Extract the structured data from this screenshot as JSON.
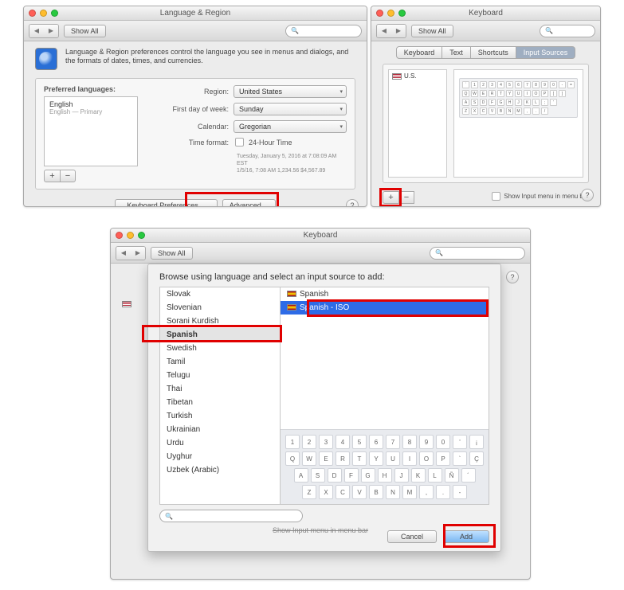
{
  "nav": {
    "show_all": "Show All"
  },
  "lang_region": {
    "title": "Language & Region",
    "desc": "Language & Region preferences control the language you see in menus and dialogs, and the formats of dates, times, and currencies.",
    "preferred_label": "Preferred languages:",
    "primary_lang": "English",
    "primary_sub": "English — Primary",
    "rows": {
      "region_label": "Region:",
      "region_val": "United States",
      "firstday_label": "First day of week:",
      "firstday_val": "Sunday",
      "calendar_label": "Calendar:",
      "calendar_val": "Gregorian",
      "timefmt_label": "Time format:",
      "timefmt_val": "24-Hour Time"
    },
    "sub_line1": "Tuesday, January 5, 2016 at 7:08:09 AM EST",
    "sub_line2": "1/5/16, 7:08 AM    1,234.56    $4,567.89",
    "keyboard_prefs_btn": "Keyboard Preferences…",
    "advanced_btn": "Advanced…"
  },
  "keyboard_small": {
    "title": "Keyboard",
    "tabs": [
      "Keyboard",
      "Text",
      "Shortcuts",
      "Input Sources"
    ],
    "source": "U.S.",
    "show_input_label": "Show Input menu in menu bar",
    "kb_rows": [
      [
        "`",
        "1",
        "2",
        "3",
        "4",
        "5",
        "6",
        "7",
        "8",
        "9",
        "0",
        "-",
        "="
      ],
      [
        "Q",
        "W",
        "E",
        "R",
        "T",
        "Y",
        "U",
        "I",
        "O",
        "P",
        "[",
        "]"
      ],
      [
        "A",
        "S",
        "D",
        "F",
        "G",
        "H",
        "J",
        "K",
        "L",
        ";",
        "'"
      ],
      [
        "Z",
        "X",
        "C",
        "V",
        "B",
        "N",
        "M",
        ",",
        ".",
        "/"
      ]
    ]
  },
  "dialog": {
    "title": "Keyboard",
    "header": "Browse using language and select an input source to add:",
    "languages": [
      "Slovak",
      "Slovenian",
      "Sorani Kurdish",
      "Spanish",
      "Swedish",
      "Tamil",
      "Telugu",
      "Thai",
      "Tibetan",
      "Turkish",
      "Ukrainian",
      "Urdu",
      "Uyghur",
      "Uzbek (Arabic)"
    ],
    "selected_lang": "Spanish",
    "sources": [
      {
        "label": "Spanish",
        "sel": false
      },
      {
        "label": "Spanish - ISO",
        "sel": true
      }
    ],
    "kb_rows": [
      [
        "1",
        "2",
        "3",
        "4",
        "5",
        "6",
        "7",
        "8",
        "9",
        "0",
        "'",
        "¡"
      ],
      [
        "Q",
        "W",
        "E",
        "R",
        "T",
        "Y",
        "U",
        "I",
        "O",
        "P",
        "`",
        "Ç"
      ],
      [
        "A",
        "S",
        "D",
        "F",
        "G",
        "H",
        "J",
        "K",
        "L",
        "Ñ",
        "´"
      ],
      [
        "Z",
        "X",
        "C",
        "V",
        "B",
        "N",
        "M",
        ",",
        ".",
        "-"
      ]
    ],
    "cancel": "Cancel",
    "add": "Add",
    "strike": "Show Input menu in menu bar"
  },
  "help_q": "?"
}
